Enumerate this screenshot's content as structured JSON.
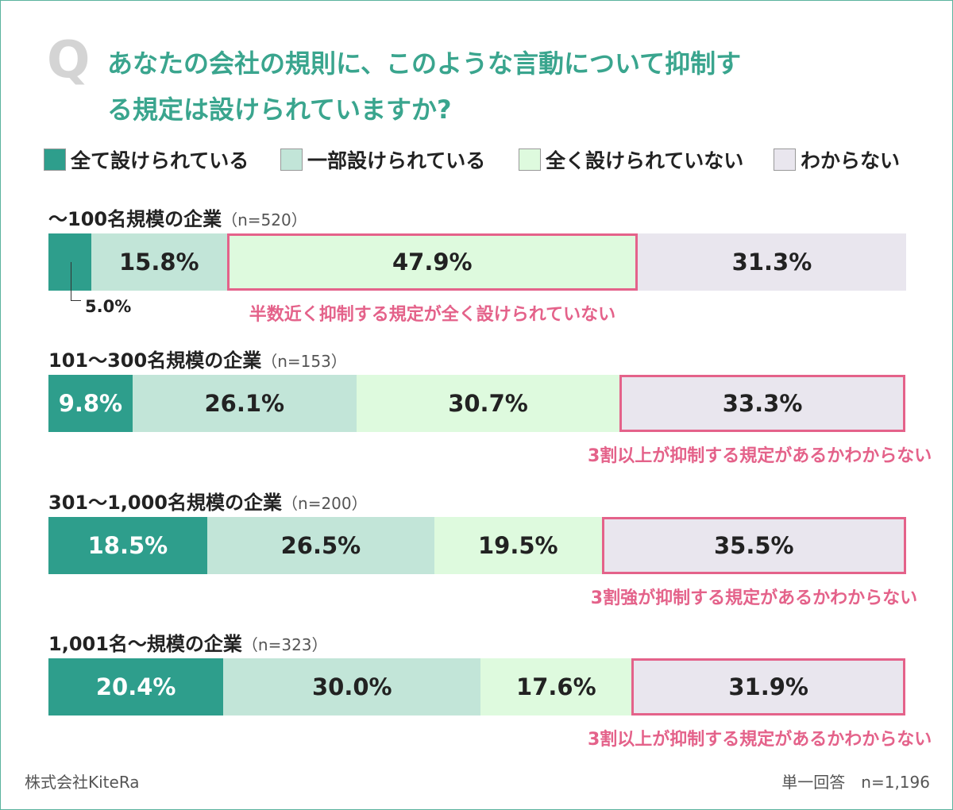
{
  "chart_data": {
    "type": "bar",
    "orientation": "horizontal",
    "stacked": true,
    "question_mark": "Q",
    "title": "あなたの会社の規則に、このような言動について抑制する規定は設けられていますか?",
    "categories": [
      "〜100名規模の企業",
      "101〜300名規模の企業",
      "301〜1,000名規模の企業",
      "1,001名〜規模の企業"
    ],
    "sample_sizes": [
      "（n=520）",
      "（n=153）",
      "（n=200）",
      "（n=323）"
    ],
    "series": [
      {
        "name": "全て設けられている",
        "color": "#2e9e8c",
        "label_color": "#ffffff",
        "values": [
          5.0,
          9.8,
          18.5,
          20.4
        ],
        "value_labels": [
          "5.0%",
          "9.8%",
          "18.5%",
          "20.4%"
        ]
      },
      {
        "name": "一部設けられている",
        "color": "#c2e5d8",
        "label_color": "#222222",
        "values": [
          15.8,
          26.1,
          26.5,
          30.0
        ],
        "value_labels": [
          "15.8%",
          "26.1%",
          "26.5%",
          "30.0%"
        ]
      },
      {
        "name": "全く設けられていない",
        "color": "#defade",
        "label_color": "#222222",
        "values": [
          47.9,
          30.7,
          19.5,
          17.6
        ],
        "value_labels": [
          "47.9%",
          "30.7%",
          "19.5%",
          "17.6%"
        ]
      },
      {
        "name": "わからない",
        "color": "#e9e6ee",
        "label_color": "#222222",
        "values": [
          31.3,
          33.3,
          35.5,
          31.9
        ],
        "value_labels": [
          "31.3%",
          "33.3%",
          "35.5%",
          "31.9%"
        ]
      }
    ],
    "xlim": [
      0,
      100
    ],
    "highlights": [
      2,
      3,
      3,
      3
    ],
    "annotations": [
      "半数近く抑制する規定が全く設けられていない",
      "3割以上が抑制する規定があるかわからない",
      "3割強が抑制する規定があるかわからない",
      "3割以上が抑制する規定があるかわからない"
    ],
    "source": "株式会社KiteRa",
    "note": "単一回答　n=1,196"
  }
}
